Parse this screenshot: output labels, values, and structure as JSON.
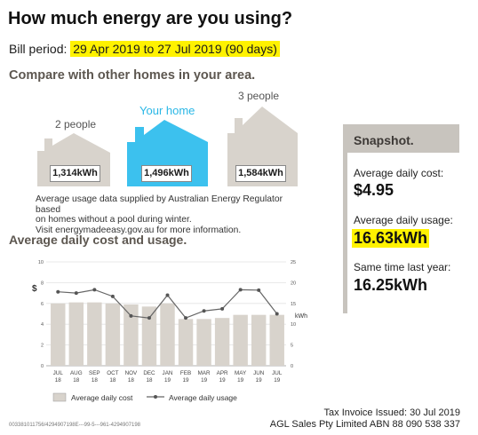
{
  "header": {
    "title": "How much energy are you using?",
    "bill_label": "Bill period:",
    "bill_value": "29 Apr 2019 to 27 Jul 2019 (90 days)"
  },
  "compare": {
    "title": "Compare with other homes in your area.",
    "houses": [
      {
        "label": "2 people",
        "kwh": "1,314kWh",
        "color": "#d8d3cc"
      },
      {
        "label": "Your home",
        "kwh": "1,496kWh",
        "color": "#3cc1ee"
      },
      {
        "label": "3 people",
        "kwh": "1,584kWh",
        "color": "#d8d3cc"
      }
    ],
    "note_lines": [
      "Average usage data supplied by Australian Energy Regulator based",
      "on homes without a pool during winter.",
      "Visit energymadeeasy.gov.au for more information."
    ]
  },
  "average": {
    "title": "Average daily cost and usage."
  },
  "chart_data": {
    "type": "bar",
    "categories": [
      [
        "JUL",
        "18"
      ],
      [
        "AUG",
        "18"
      ],
      [
        "SEP",
        "18"
      ],
      [
        "OCT",
        "18"
      ],
      [
        "NOV",
        "18"
      ],
      [
        "DEC",
        "18"
      ],
      [
        "JAN",
        "19"
      ],
      [
        "FEB",
        "19"
      ],
      [
        "MAR",
        "19"
      ],
      [
        "APR",
        "19"
      ],
      [
        "MAY",
        "19"
      ],
      [
        "JUN",
        "19"
      ],
      [
        "JUL",
        "19"
      ]
    ],
    "series": [
      {
        "name": "Average daily cost",
        "axis": "left",
        "kind": "bar",
        "color": "#d8d3cc",
        "values": [
          6.0,
          6.1,
          6.1,
          6.0,
          5.9,
          5.7,
          6.0,
          4.5,
          4.5,
          4.6,
          4.9,
          4.9,
          4.9
        ]
      },
      {
        "name": "Average daily usage",
        "axis": "right",
        "kind": "line",
        "color": "#666666",
        "values": [
          17.8,
          17.5,
          18.3,
          16.7,
          12.0,
          11.5,
          17.0,
          11.5,
          13.2,
          13.7,
          18.3,
          18.2,
          12.5
        ]
      }
    ],
    "left_axis": {
      "label": "$",
      "ylim": [
        0,
        10
      ],
      "ticks": [
        0,
        2,
        4,
        6,
        8,
        10
      ]
    },
    "right_axis": {
      "label": "kWh",
      "ylim": [
        0,
        25
      ],
      "ticks": [
        0,
        5,
        10,
        15,
        20,
        25
      ]
    },
    "grid": true,
    "legend": "bottom"
  },
  "snapshot": {
    "title": "Snapshot.",
    "cost_label": "Average daily cost:",
    "cost_value": "$4.95",
    "usage_label": "Average daily usage:",
    "usage_value": "16.63kWh",
    "last_year_label": "Same time last year:",
    "last_year_value": "16.25kWh"
  },
  "footer": {
    "issued": "Tax Invoice Issued: 30 Jul 2019",
    "abn": "AGL Sales Pty Limited ABN 88 090 538 337",
    "code": "003381011756/4294907198E---99-5---961-4294907198"
  }
}
